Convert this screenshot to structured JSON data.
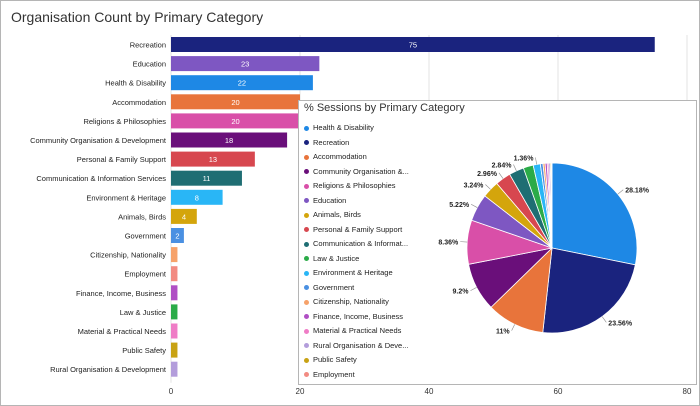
{
  "bar_chart_title": "Organisation Count by Primary Category",
  "pie_chart_title": "% Sessions by Primary Category",
  "chart_data": [
    {
      "type": "bar",
      "orientation": "horizontal",
      "title": "Organisation Count by Primary Category",
      "categories": [
        "Recreation",
        "Education",
        "Health & Disability",
        "Accommodation",
        "Religions & Philosophies",
        "Community Organisation & Development",
        "Personal & Family Support",
        "Communication & Information Services",
        "Environment & Heritage",
        "Animals, Birds",
        "Government",
        "Citizenship, Nationality",
        "Employment",
        "Finance, Income, Business",
        "Law & Justice",
        "Material & Practical Needs",
        "Public Safety",
        "Rural Organisation & Development"
      ],
      "values": [
        75,
        23,
        22,
        20,
        20,
        18,
        13,
        11,
        8,
        4,
        2,
        1,
        1,
        1,
        1,
        1,
        1,
        1
      ],
      "value_labels": [
        "75",
        "23",
        "22",
        "20",
        "20",
        "18",
        "13",
        "11",
        "8",
        "4",
        "2",
        "",
        "",
        "",
        "",
        "",
        "",
        ""
      ],
      "colors": [
        "#1a237e",
        "#7e57c2",
        "#1e88e5",
        "#e8743b",
        "#d94fa8",
        "#6a0f7a",
        "#d7474f",
        "#1f6e73",
        "#29b6f6",
        "#d4a50c",
        "#4a90e2",
        "#f6a26a",
        "#f28b82",
        "#b04fc4",
        "#2bab48",
        "#ef7dc6",
        "#c8a214",
        "#b39ddb"
      ],
      "x_ticks": [
        "0",
        "20",
        "40",
        "60",
        "80"
      ],
      "xlim": [
        0,
        80
      ],
      "grid": true
    },
    {
      "type": "pie",
      "title": "% Sessions by Primary Category",
      "legend_position": "left",
      "categories": [
        "Health & Disability",
        "Recreation",
        "Accommodation",
        "Community Organisation &...",
        "Religions & Philosophies",
        "Education",
        "Animals, Birds",
        "Personal & Family Support",
        "Communication & Informat...",
        "Law & Justice",
        "Environment & Heritage",
        "Government",
        "Citizenship, Nationality",
        "Finance, Income, Business",
        "Material & Practical Needs",
        "Rural Organisation & Deve...",
        "Public Safety",
        "Employment"
      ],
      "values": [
        28.18,
        23.56,
        11,
        9.2,
        8.36,
        5.22,
        3.24,
        2.96,
        2.84,
        1.9,
        1.36,
        0.5,
        0.4,
        0.4,
        0.3,
        0.3,
        0.2,
        0.1
      ],
      "value_labels": [
        "28.18%",
        "23.56%",
        "11%",
        "9.2%",
        "8.36%",
        "5.22%",
        "3.24%",
        "2.96%",
        "2.84%",
        "",
        "1.36%",
        "",
        "",
        "",
        "",
        "",
        "",
        ""
      ],
      "colors": [
        "#1e88e5",
        "#1a237e",
        "#e8743b",
        "#6a0f7a",
        "#d94fa8",
        "#7e57c2",
        "#d4a50c",
        "#d7474f",
        "#1f6e73",
        "#2bab48",
        "#29b6f6",
        "#4a90e2",
        "#f6a26a",
        "#b04fc4",
        "#ef7dc6",
        "#b39ddb",
        "#c8a214",
        "#f28b82"
      ]
    }
  ]
}
